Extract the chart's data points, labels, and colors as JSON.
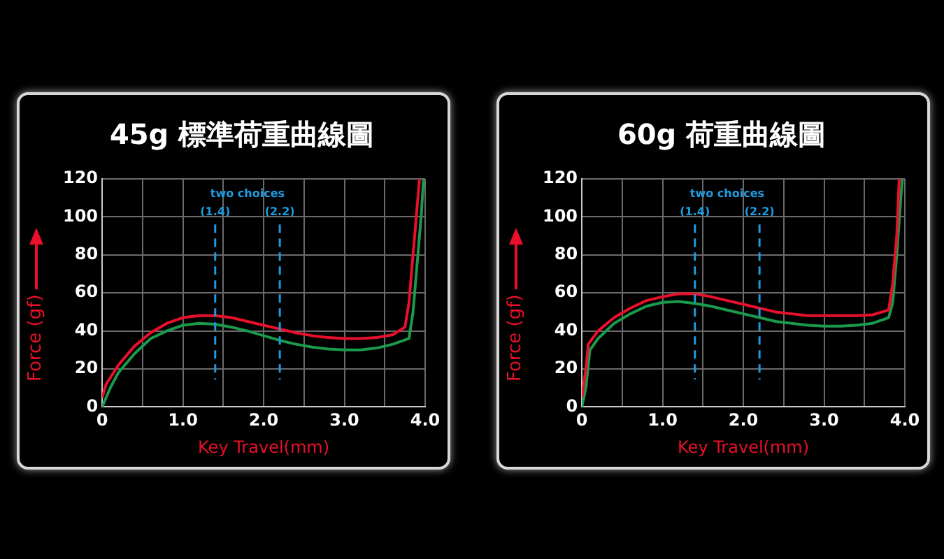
{
  "chart_data": [
    {
      "type": "line",
      "title": "45g 標準荷重曲線圖",
      "xlabel": "Key Travel(mm)",
      "ylabel": "Force (gf)",
      "annotations": [
        "two choices"
      ],
      "xlim": [
        0,
        4
      ],
      "ylim": [
        0,
        120
      ],
      "xticks": [
        0,
        {
          "value": 0.5,
          "label": null
        },
        {
          "value": 1,
          "label": "1.0"
        },
        {
          "value": 1.5,
          "label": null
        },
        {
          "value": 2,
          "label": "2.0"
        },
        {
          "value": 2.5,
          "label": null
        },
        {
          "value": 3,
          "label": "3.0"
        },
        {
          "value": 3.5,
          "label": null
        },
        {
          "value": 4,
          "label": "4.0"
        }
      ],
      "yticks": [
        0,
        20,
        40,
        60,
        80,
        100,
        120
      ],
      "grid": true,
      "legend": false,
      "marker": "none",
      "line_style": "solid",
      "ref_lines": [
        {
          "axis": "x",
          "value": 1.4,
          "label": "(1.4)",
          "color": "#1e9be0",
          "line_style": "dashed"
        },
        {
          "axis": "x",
          "value": 2.2,
          "label": "(2.2)",
          "color": "#1e9be0",
          "line_style": "dashed"
        }
      ],
      "series": [
        {
          "color": "#e8102a",
          "x": [
            0,
            0.05,
            0.2,
            0.4,
            0.6,
            0.8,
            1,
            1.2,
            1.4,
            1.6,
            1.8,
            2,
            2.2,
            2.4,
            2.6,
            2.8,
            3,
            3.2,
            3.4,
            3.6,
            3.75,
            3.8,
            3.85,
            3.9,
            3.93
          ],
          "values": [
            5,
            12,
            22,
            32,
            39,
            44,
            47,
            48,
            48,
            47,
            45,
            43,
            41,
            39,
            37.5,
            36.5,
            36,
            36,
            36.5,
            38,
            42,
            55,
            80,
            105,
            120
          ]
        },
        {
          "color": "#1a9a4a",
          "x": [
            0,
            0.1,
            0.2,
            0.4,
            0.6,
            0.8,
            1,
            1.2,
            1.4,
            1.6,
            1.8,
            2,
            2.2,
            2.4,
            2.6,
            2.8,
            3,
            3.2,
            3.4,
            3.6,
            3.8,
            3.85,
            3.9,
            3.95,
            3.98
          ],
          "values": [
            0,
            10,
            18,
            28,
            36,
            40,
            43,
            44,
            43.5,
            42,
            40,
            37.5,
            35,
            33,
            31.5,
            30.5,
            30,
            30,
            31,
            33,
            36,
            50,
            75,
            100,
            120
          ]
        }
      ]
    },
    {
      "type": "line",
      "title": "60g 荷重曲線圖",
      "xlabel": "Key Travel(mm)",
      "ylabel": "Force (gf)",
      "annotations": [
        "two choices"
      ],
      "xlim": [
        0,
        4
      ],
      "ylim": [
        0,
        120
      ],
      "xticks": [
        0,
        {
          "value": 0.5,
          "label": null
        },
        {
          "value": 1,
          "label": "1.0"
        },
        {
          "value": 1.5,
          "label": null
        },
        {
          "value": 2,
          "label": "2.0"
        },
        {
          "value": 2.5,
          "label": null
        },
        {
          "value": 3,
          "label": "3.0"
        },
        {
          "value": 3.5,
          "label": null
        },
        {
          "value": 4,
          "label": "4.0"
        }
      ],
      "yticks": [
        0,
        20,
        40,
        60,
        80,
        100,
        120
      ],
      "grid": true,
      "legend": false,
      "marker": "none",
      "line_style": "solid",
      "ref_lines": [
        {
          "axis": "x",
          "value": 1.4,
          "label": "(1.4)",
          "color": "#1e9be0",
          "line_style": "dashed"
        },
        {
          "axis": "x",
          "value": 2.2,
          "label": "(2.2)",
          "color": "#1e9be0",
          "line_style": "dashed"
        }
      ],
      "series": [
        {
          "color": "#e8102a",
          "x": [
            0,
            0.05,
            0.08,
            0.2,
            0.4,
            0.6,
            0.8,
            1,
            1.2,
            1.4,
            1.6,
            1.8,
            2,
            2.2,
            2.4,
            2.6,
            2.8,
            3,
            3.2,
            3.4,
            3.6,
            3.8,
            3.85,
            3.9,
            3.93
          ],
          "values": [
            5,
            20,
            33,
            40,
            47,
            52,
            56,
            58,
            59.5,
            59.5,
            58,
            56,
            54,
            52,
            50,
            49,
            48,
            48,
            48,
            48,
            48.5,
            51,
            65,
            90,
            120
          ]
        },
        {
          "color": "#1a9a4a",
          "x": [
            0,
            0.05,
            0.1,
            0.2,
            0.4,
            0.6,
            0.8,
            1,
            1.2,
            1.4,
            1.6,
            1.8,
            2,
            2.2,
            2.4,
            2.6,
            2.8,
            3,
            3.2,
            3.4,
            3.6,
            3.8,
            3.85,
            3.9,
            3.95,
            3.97
          ],
          "values": [
            0,
            10,
            30,
            36,
            44,
            49,
            53,
            55,
            55.5,
            54.5,
            53,
            51,
            49,
            47,
            45,
            44,
            43,
            42.5,
            42.5,
            43,
            44,
            47,
            55,
            80,
            110,
            120
          ]
        }
      ]
    }
  ]
}
